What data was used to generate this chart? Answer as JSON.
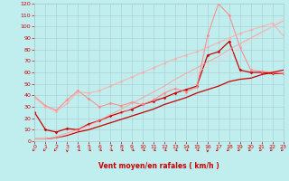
{
  "xlabel": "Vent moyen/en rafales ( km/h )",
  "background_color": "#c0eded",
  "grid_color": "#aacccc",
  "xlim": [
    0,
    23
  ],
  "ylim": [
    0,
    120
  ],
  "yticks": [
    0,
    10,
    20,
    30,
    40,
    50,
    60,
    70,
    80,
    90,
    100,
    110,
    120
  ],
  "xticks": [
    0,
    1,
    2,
    3,
    4,
    5,
    6,
    7,
    8,
    9,
    10,
    11,
    12,
    13,
    14,
    15,
    16,
    17,
    18,
    19,
    20,
    21,
    22,
    23
  ],
  "lines": [
    {
      "x": [
        0,
        1,
        2,
        3,
        4,
        5,
        6,
        7,
        8,
        9,
        10,
        11,
        12,
        13,
        14,
        15,
        16,
        17,
        18,
        19,
        20,
        21,
        22,
        23
      ],
      "y": [
        25,
        10,
        8,
        11,
        10,
        15,
        18,
        22,
        25,
        28,
        32,
        35,
        38,
        42,
        45,
        48,
        75,
        78,
        87,
        62,
        60,
        60,
        59,
        59
      ],
      "color": "#cc0000",
      "marker": "D",
      "markersize": 1.5,
      "linewidth": 0.9,
      "alpha": 1.0
    },
    {
      "x": [
        0,
        1,
        2,
        3,
        4,
        5,
        6,
        7,
        8,
        9,
        10,
        11,
        12,
        13,
        14,
        15,
        16,
        17,
        18,
        19,
        20,
        21,
        22,
        23
      ],
      "y": [
        39,
        31,
        27,
        36,
        44,
        37,
        30,
        33,
        31,
        34,
        32,
        36,
        42,
        46,
        43,
        47,
        92,
        120,
        110,
        82,
        62,
        61,
        60,
        59
      ],
      "color": "#ff8888",
      "marker": "D",
      "markersize": 1.5,
      "linewidth": 0.8,
      "alpha": 0.9
    },
    {
      "x": [
        0,
        1,
        2,
        3,
        4,
        5,
        6,
        7,
        8,
        9,
        10,
        11,
        12,
        13,
        14,
        15,
        16,
        17,
        18,
        19,
        20,
        21,
        22,
        23
      ],
      "y": [
        2,
        2,
        3,
        5,
        8,
        10,
        13,
        16,
        19,
        22,
        25,
        28,
        32,
        35,
        38,
        42,
        45,
        48,
        52,
        54,
        55,
        58,
        60,
        62
      ],
      "color": "#cc0000",
      "marker": null,
      "linewidth": 0.9,
      "alpha": 1.0
    },
    {
      "x": [
        0,
        1,
        2,
        3,
        4,
        5,
        6,
        7,
        8,
        9,
        10,
        11,
        12,
        13,
        14,
        15,
        16,
        17,
        18,
        19,
        20,
        21,
        22,
        23
      ],
      "y": [
        38,
        30,
        26,
        33,
        43,
        42,
        44,
        48,
        52,
        56,
        60,
        64,
        68,
        72,
        75,
        78,
        82,
        86,
        90,
        94,
        97,
        100,
        103,
        92
      ],
      "color": "#ffaaaa",
      "marker": "D",
      "markersize": 1.5,
      "linewidth": 0.8,
      "alpha": 0.8
    },
    {
      "x": [
        0,
        1,
        2,
        3,
        4,
        5,
        6,
        7,
        8,
        9,
        10,
        11,
        12,
        13,
        14,
        15,
        16,
        17,
        18,
        19,
        20,
        21,
        22,
        23
      ],
      "y": [
        2,
        2,
        4,
        7,
        10,
        14,
        18,
        23,
        28,
        33,
        38,
        43,
        48,
        54,
        59,
        64,
        69,
        74,
        80,
        85,
        90,
        95,
        100,
        105
      ],
      "color": "#ff9999",
      "marker": null,
      "linewidth": 0.8,
      "alpha": 0.75
    },
    {
      "x": [
        0,
        1,
        2,
        3,
        4,
        5,
        6,
        7,
        8,
        9,
        10,
        11,
        12,
        13,
        14,
        15,
        16,
        17,
        18,
        19,
        20,
        21,
        22,
        23
      ],
      "y": [
        2,
        2,
        3,
        6,
        9,
        12,
        16,
        20,
        24,
        29,
        34,
        39,
        44,
        49,
        55,
        60,
        65,
        70,
        76,
        82,
        88,
        94,
        100,
        108
      ],
      "color": "#ffcccc",
      "marker": null,
      "linewidth": 0.7,
      "alpha": 0.65
    }
  ],
  "arrow_directions": [
    225,
    225,
    225,
    180,
    135,
    135,
    135,
    135,
    135,
    135,
    135,
    135,
    135,
    135,
    135,
    135,
    180,
    225,
    225,
    225,
    225,
    225,
    225,
    225
  ],
  "arrow_color": "#cc0000",
  "label_color": "#cc0000",
  "tick_color": "#cc0000"
}
